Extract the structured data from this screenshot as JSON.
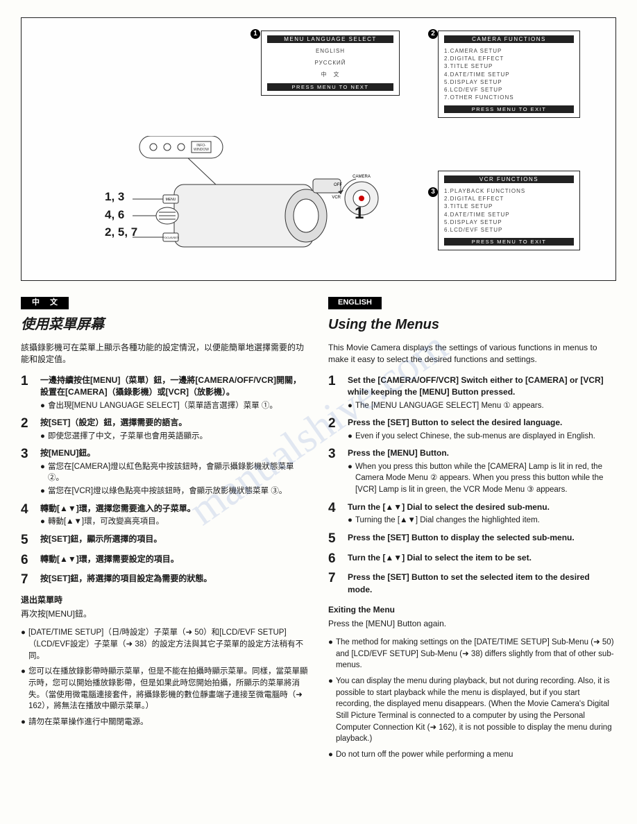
{
  "screens": {
    "s1": {
      "title": "MENU LANGUAGE SELECT",
      "lines": [
        "ENGLISH",
        "РУССКИЙ",
        "中　文"
      ],
      "footer": "PRESS MENU TO NEXT"
    },
    "s2": {
      "title": "CAMERA FUNCTIONS",
      "lines": [
        "1.CAMERA SETUP",
        "2.DIGITAL EFFECT",
        "3.TITLE SETUP",
        "4.DATE/TIME SETUP",
        "5.DISPLAY SETUP",
        "6.LCD/EVF SETUP",
        "7.OTHER FUNCTIONS"
      ],
      "footer": "PRESS MENU TO EXIT"
    },
    "s3": {
      "title": "VCR FUNCTIONS",
      "lines": [
        "1.PLAYBACK FUNCTIONS",
        "2.DIGITAL EFFECT",
        "3.TITLE SETUP",
        "4.DATE/TIME SETUP",
        "5.DISPLAY SETUP",
        "6.LCD/EVF SETUP"
      ],
      "footer": "PRESS MENU TO EXIT"
    }
  },
  "diagram": {
    "left_labels": [
      "1, 3",
      "4, 6",
      "2, 5, 7"
    ],
    "right_label": "1",
    "info_window": "INFO-WINDOW",
    "mode_labels": [
      "CAMERA",
      "OFF",
      "VCR"
    ]
  },
  "cn": {
    "badge": "中 文",
    "heading": "使用菜單屏幕",
    "intro": "該攝錄影機可在菜單上顯示各種功能的設定情況，以便能簡單地選擇需要的功能和設定值。",
    "steps": [
      {
        "n": "1",
        "main": "一邊持續按住[MENU]（菜單）鈕，一邊將[CAMERA/OFF/VCR]開關，設置在[CAMERA]（攝錄影機）或[VCR]（放影機）。",
        "subs": [
          "會出現[MENU LANGUAGE SELECT]（菜單語言選擇）菜單 ①。"
        ]
      },
      {
        "n": "2",
        "main": "按[SET]（設定）鈕，選擇需要的語言。",
        "subs": [
          "即使您選擇了中文，子菜單也會用英語顯示。"
        ]
      },
      {
        "n": "3",
        "main": "按[MENU]鈕。",
        "subs": [
          "當您在[CAMERA]燈以紅色點亮中按該鈕時，會顯示攝錄影機狀態菜單 ②。",
          "當您在[VCR]燈以綠色點亮中按該鈕時，會顯示放影機狀態菜單 ③。"
        ]
      },
      {
        "n": "4",
        "main": "轉動[▲▼]環，選擇您需要進入的子菜單。",
        "subs": [
          "轉動[▲▼]環，可改變高亮項目。"
        ]
      },
      {
        "n": "5",
        "main": "按[SET]鈕，顯示所選擇的項目。",
        "subs": []
      },
      {
        "n": "6",
        "main": "轉動[▲▼]環，選擇需要設定的項目。",
        "subs": []
      },
      {
        "n": "7",
        "main": "按[SET]鈕，將選擇的項目設定為需要的狀態。",
        "subs": []
      }
    ],
    "exit_title": "退出菜單時",
    "exit_body": "再次按[MENU]鈕。",
    "notes": [
      "[DATE/TIME SETUP]（日/時設定）子菜單（➜ 50）和[LCD/EVF SETUP]（LCD/EVF設定）子菜單（➜ 38）的設定方法與其它子菜單的設定方法稍有不同。",
      "您可以在播放錄影帶時顯示菜單，但是不能在拍攝時顯示菜單。同樣，當菜單顯示時，您可以開始播放錄影帶，但是如果此時您開始拍攝，所顯示的菜單將消失。（當使用微電腦連接套件，將攝錄影機的數位靜畫端子連接至微電腦時（➜ 162），將無法在播放中顯示菜單。）",
      "請勿在菜單操作進行中關閉電源。"
    ]
  },
  "en": {
    "badge": "ENGLISH",
    "heading": "Using the Menus",
    "intro": "This Movie Camera displays the settings of various functions in menus to make it easy to select the desired functions and settings.",
    "steps": [
      {
        "n": "1",
        "main": "Set the [CAMERA/OFF/VCR] Switch either to [CAMERA] or [VCR] while keeping the [MENU] Button pressed.",
        "subs": [
          "The [MENU LANGUAGE SELECT] Menu ① appears."
        ]
      },
      {
        "n": "2",
        "main": "Press the [SET] Button to select the desired language.",
        "subs": [
          "Even if you select Chinese, the sub-menus are displayed in English."
        ]
      },
      {
        "n": "3",
        "main": "Press the [MENU] Button.",
        "subs": [
          "When you press this button while the [CAMERA] Lamp is lit in red, the Camera Mode Menu ② appears. When you press this button while the [VCR] Lamp is lit in green, the VCR Mode Menu ③ appears."
        ]
      },
      {
        "n": "4",
        "main": "Turn the [▲▼] Dial to select the desired sub-menu.",
        "subs": [
          "Turning the [▲▼] Dial changes the highlighted item."
        ]
      },
      {
        "n": "5",
        "main": "Press the [SET] Button to display the selected sub-menu.",
        "subs": []
      },
      {
        "n": "6",
        "main": "Turn the [▲▼] Dial to select the item to be set.",
        "subs": []
      },
      {
        "n": "7",
        "main": "Press the [SET] Button to set the selected item to the desired mode.",
        "subs": []
      }
    ],
    "exit_title": "Exiting the Menu",
    "exit_body": "Press the [MENU] Button again.",
    "notes": [
      "The method for making settings on the [DATE/TIME SETUP] Sub-Menu (➜ 50) and [LCD/EVF SETUP] Sub-Menu (➜ 38) differs slightly from that of other sub-menus.",
      "You can display the menu during playback, but not during recording. Also, it is possible to start playback while the menu is displayed, but if you start recording, the displayed menu disappears. (When the Movie Camera's Digital Still Picture Terminal is connected to a computer by using the Personal Computer Connection Kit (➜ 162), it is not possible to display the menu during playback.)",
      "Do not turn off the power while performing a menu"
    ]
  },
  "watermark": "manualshive.com"
}
